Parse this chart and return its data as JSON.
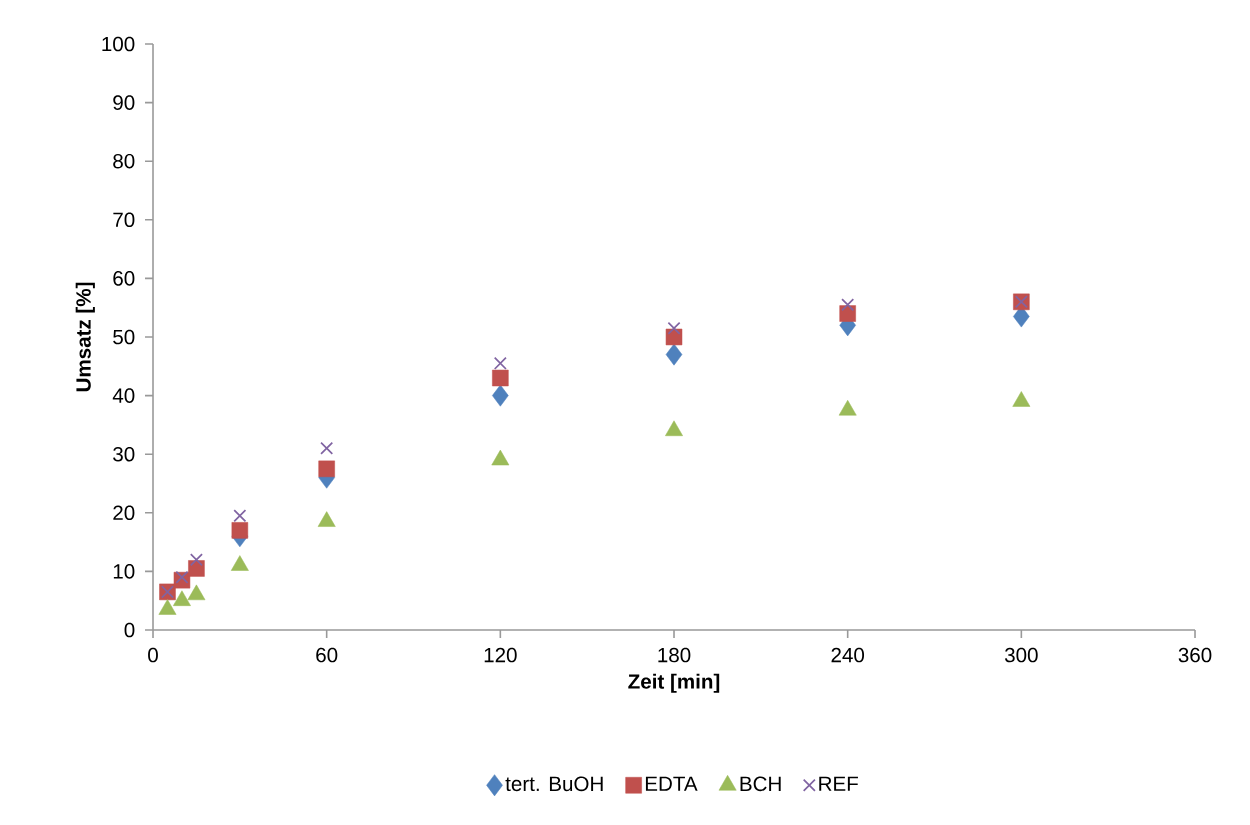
{
  "chart_data": {
    "type": "scatter",
    "xlabel": "Zeit [min]",
    "ylabel": "Umsatz [%]",
    "x": [
      5,
      10,
      15,
      30,
      60,
      120,
      180,
      240,
      300
    ],
    "series": [
      {
        "name": "tert. BuOH",
        "color": "#4f81bd",
        "marker": "diamond",
        "values": [
          null,
          null,
          null,
          16,
          26,
          40,
          47,
          52,
          53.5
        ]
      },
      {
        "name": "EDTA",
        "color": "#c0504d",
        "marker": "square",
        "values": [
          6.5,
          8.5,
          10.5,
          17,
          27.5,
          43,
          50,
          54,
          56
        ]
      },
      {
        "name": "BCH",
        "color": "#9bbb59",
        "marker": "triangle",
        "values": [
          3.5,
          5,
          6,
          11,
          18.5,
          29,
          34,
          37.5,
          39
        ]
      },
      {
        "name": "REF",
        "color": "#8064a2",
        "marker": "cross",
        "values": [
          6.5,
          9,
          12,
          19.5,
          31,
          45.5,
          51.5,
          55.5,
          56
        ]
      }
    ],
    "xlim": [
      0,
      360
    ],
    "xticks": [
      0,
      60,
      120,
      180,
      240,
      300,
      360
    ],
    "ylim": [
      0,
      100
    ],
    "yticks": [
      0,
      10,
      20,
      30,
      40,
      50,
      60,
      70,
      80,
      90,
      100
    ],
    "grid": false,
    "legend": "bottom"
  }
}
